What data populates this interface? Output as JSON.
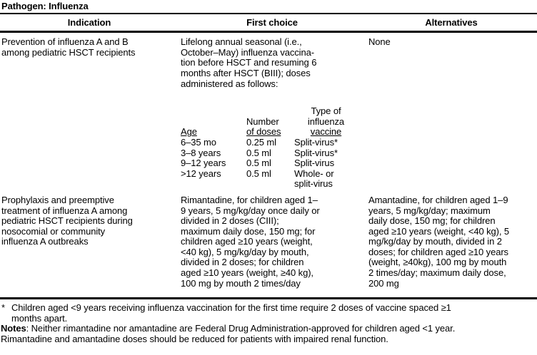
{
  "colors": {
    "text": "#000000",
    "background": "#ffffff"
  },
  "title": "Pathogen: Influenza",
  "columns": {
    "indication": "Indication",
    "first_choice": "First choice",
    "alternatives": "Alternatives"
  },
  "rows": [
    {
      "indication_lines": [
        "Prevention of influenza A and B",
        "among pediatric HSCT recipients"
      ],
      "first_choice_lines": [
        "Lifelong annual seasonal (i.e.,",
        "October–May) influenza vaccina-",
        "tion before HSCT and resuming 6",
        "months after HSCT (BIII); doses",
        "administered as follows:"
      ],
      "alternatives": "None",
      "dose_table": {
        "headers": {
          "age": "Age",
          "doses_line1": "Number",
          "doses_line2": "of doses",
          "type_line1": "Type of",
          "type_line2": "influenza",
          "type_line3": "vaccine"
        },
        "rows": [
          {
            "age": "6–35 mo",
            "dose": "0.25 ml",
            "type_lines": [
              "Split-virus*"
            ]
          },
          {
            "age": "3–8 years",
            "dose": "0.5 ml",
            "type_lines": [
              "Split-virus*"
            ]
          },
          {
            "age": "9–12 years",
            "dose": "0.5 ml",
            "type_lines": [
              "Split-virus"
            ]
          },
          {
            "age": ">12 years",
            "dose": "0.5 ml",
            "type_lines": [
              "Whole- or",
              "split-virus"
            ]
          }
        ]
      }
    },
    {
      "indication_lines": [
        "Prophylaxis and preemptive",
        "treatment of influenza A among",
        "pediatric HSCT recipients during",
        "nosocomial or community",
        "influenza A outbreaks"
      ],
      "first_choice_lines": [
        "Rimantadine, for children aged 1–",
        "9 years, 5 mg/kg/day once daily or",
        "divided in 2 doses (CIII);",
        "maximum daily dose, 150 mg; for",
        "children aged ≥10 years (weight,",
        "<40 kg), 5 mg/kg/day by mouth,",
        "divided in 2 doses; for children",
        "aged ≥10 years (weight, ≥40 kg),",
        "100 mg by mouth 2 times/day"
      ],
      "alternatives_lines": [
        "Amantadine, for children aged 1–9",
        "years, 5 mg/kg/day; maximum",
        "daily dose, 150 mg; for children",
        "aged ≥10 years (weight, <40 kg), 5",
        "mg/kg/day by mouth, divided in 2",
        "doses; for children aged ≥10 years",
        "(weight, ≥40kg), 100 mg by mouth",
        "2 times/day; maximum daily dose,",
        "200 mg"
      ]
    }
  ],
  "footnotes": {
    "star_symbol": "*",
    "star_lines": [
      "Children aged <9 years receiving influenza vaccination for the first time require 2 doses of vaccine spaced ≥1",
      "months apart."
    ],
    "notes_label": "Notes",
    "notes_rest": ": Neither rimantadine nor amantadine are Federal Drug Administration-approved for children aged <1 year.",
    "notes_line2": "Rimantadine and amantadine doses should be reduced for patients with impaired renal function."
  }
}
